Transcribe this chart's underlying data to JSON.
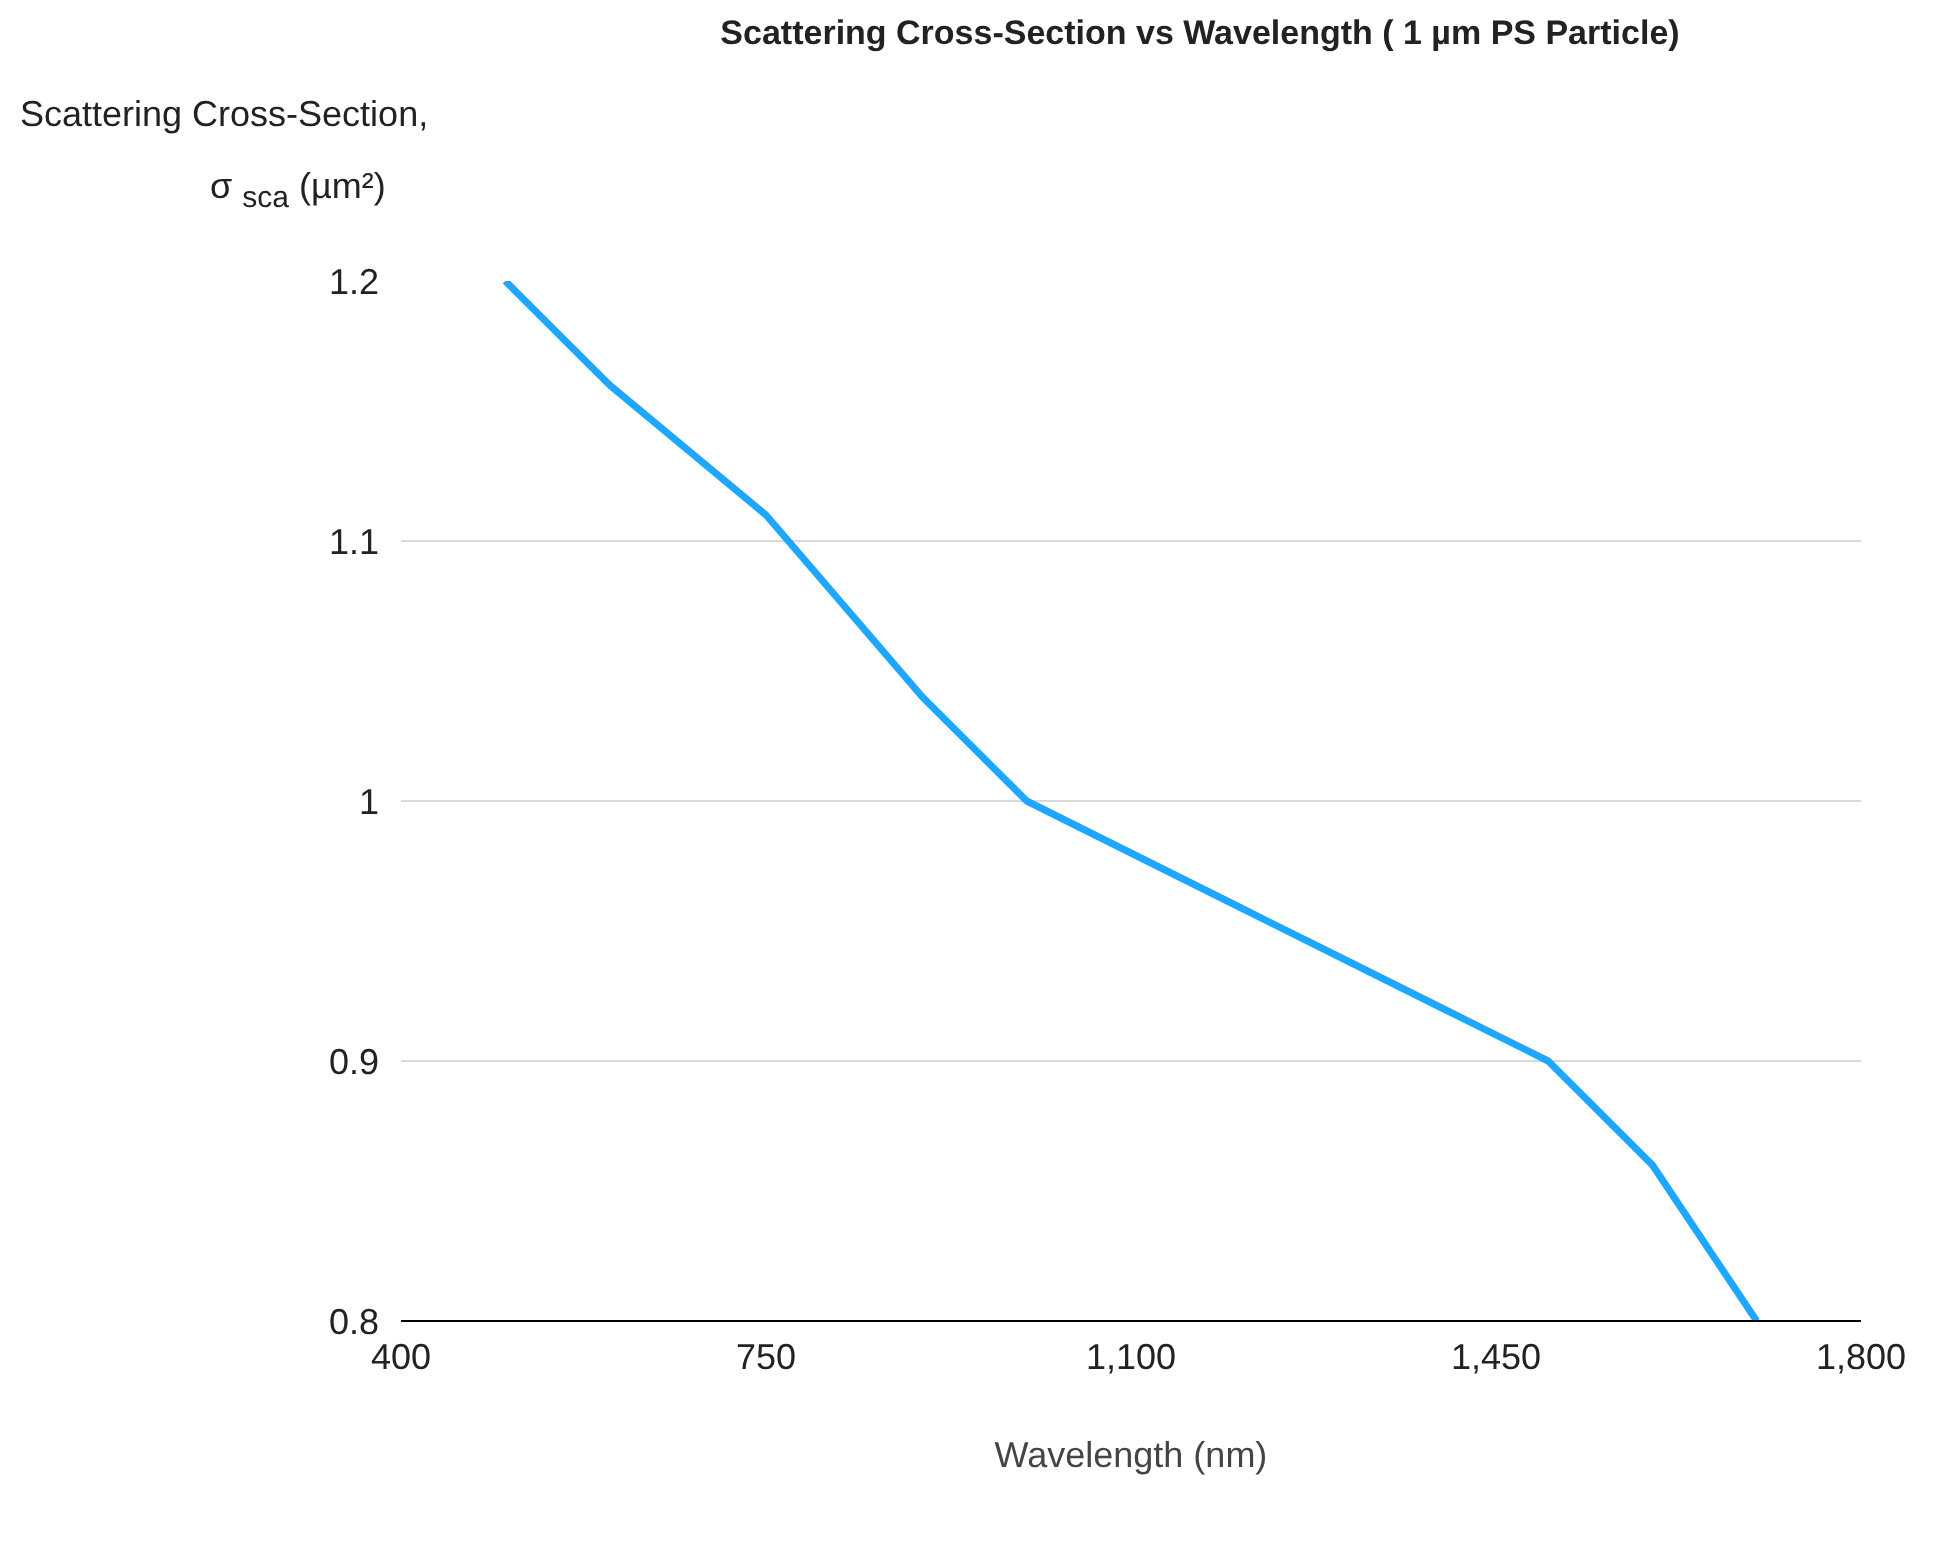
{
  "chart_data": {
    "type": "line",
    "title": "Scattering Cross-Section vs Wavelength ( 1 µm PS Particle)",
    "xlabel": "Wavelength (nm)",
    "ylabel": "Scattering Cross-Section, σ $_{sca}$ (µm²)",
    "x": [
      500,
      600,
      750,
      900,
      1000,
      1100,
      1200,
      1300,
      1400,
      1500,
      1600,
      1700
    ],
    "series": [
      {
        "color": "#1ea7fd",
        "values": [
          1.2,
          1.16,
          1.11,
          1.04,
          1.0,
          0.98,
          0.96,
          0.94,
          0.92,
          0.9,
          0.86,
          0.8
        ]
      }
    ],
    "xlim": [
      400,
      1800
    ],
    "xticks": [
      {
        "value": 400,
        "label": "400"
      },
      {
        "value": 750,
        "label": "750"
      },
      {
        "value": 1100,
        "label": "1,100"
      },
      {
        "value": 1450,
        "label": "1,450"
      },
      {
        "value": 1800,
        "label": "1,800"
      }
    ],
    "ylim": [
      0.8,
      1.2
    ],
    "yticks": [
      0.8,
      0.9,
      1,
      1.1,
      1.2
    ],
    "grid": "y",
    "marker": "none",
    "line_style": "solid"
  }
}
